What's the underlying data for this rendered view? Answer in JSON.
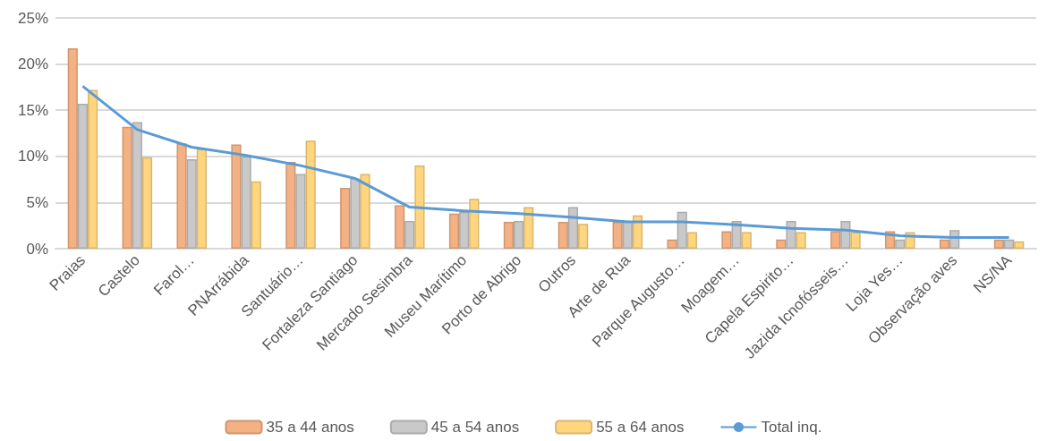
{
  "chart_data": {
    "type": "bar",
    "categories": [
      "Praias",
      "Castelo",
      "Farol…",
      "PNArrábida",
      "Santuário…",
      "Fortaleza Santiago",
      "Mercado Sesimbra",
      "Museu Marítimo",
      "Porto de Abrigo",
      "Outros",
      "Arte de Rua",
      "Parque Augusto…",
      "Moagem…",
      "Capela Espirito…",
      "Jazida Icnofósseis…",
      "Loja Yes…",
      "Observação aves",
      "NS/NA"
    ],
    "series": [
      {
        "name": "35 a 44 anos",
        "color": "#f4b183",
        "values": [
          21.7,
          13.2,
          11.4,
          11.3,
          9.4,
          6.6,
          4.7,
          3.8,
          2.9,
          2.9,
          2.9,
          1.0,
          1.9,
          1.0,
          1.9,
          1.9,
          1.0,
          1.0
        ]
      },
      {
        "name": "45 a 54 anos",
        "color": "#c9c9c9",
        "values": [
          15.7,
          13.7,
          9.7,
          10.0,
          8.1,
          7.6,
          3.0,
          4.0,
          3.0,
          4.5,
          3.0,
          4.0,
          3.0,
          3.0,
          3.0,
          1.0,
          2.0,
          1.0
        ]
      },
      {
        "name": "55 a 64 anos",
        "color": "#ffd67f",
        "values": [
          17.2,
          9.9,
          10.8,
          7.3,
          11.7,
          8.1,
          9.0,
          5.4,
          4.5,
          2.7,
          3.6,
          1.8,
          1.8,
          1.8,
          1.8,
          1.8,
          null,
          0.8
        ]
      },
      {
        "name": "Total inq.",
        "type": "line",
        "color": "#5b9bd5",
        "values": [
          17.6,
          12.9,
          11.0,
          10.1,
          9.0,
          7.6,
          4.5,
          4.1,
          3.8,
          3.4,
          2.9,
          2.9,
          2.6,
          2.2,
          2.0,
          1.4,
          1.2,
          1.2
        ]
      }
    ],
    "ylim": [
      0,
      25
    ],
    "yticks": [
      {
        "value": 0,
        "label": "0%"
      },
      {
        "value": 5,
        "label": "5%"
      },
      {
        "value": 10,
        "label": "10%"
      },
      {
        "value": 15,
        "label": "15%"
      },
      {
        "value": 20,
        "label": "20%"
      },
      {
        "value": 25,
        "label": "25%"
      }
    ],
    "grid": "y",
    "legend": "bottom",
    "marker": "none"
  }
}
